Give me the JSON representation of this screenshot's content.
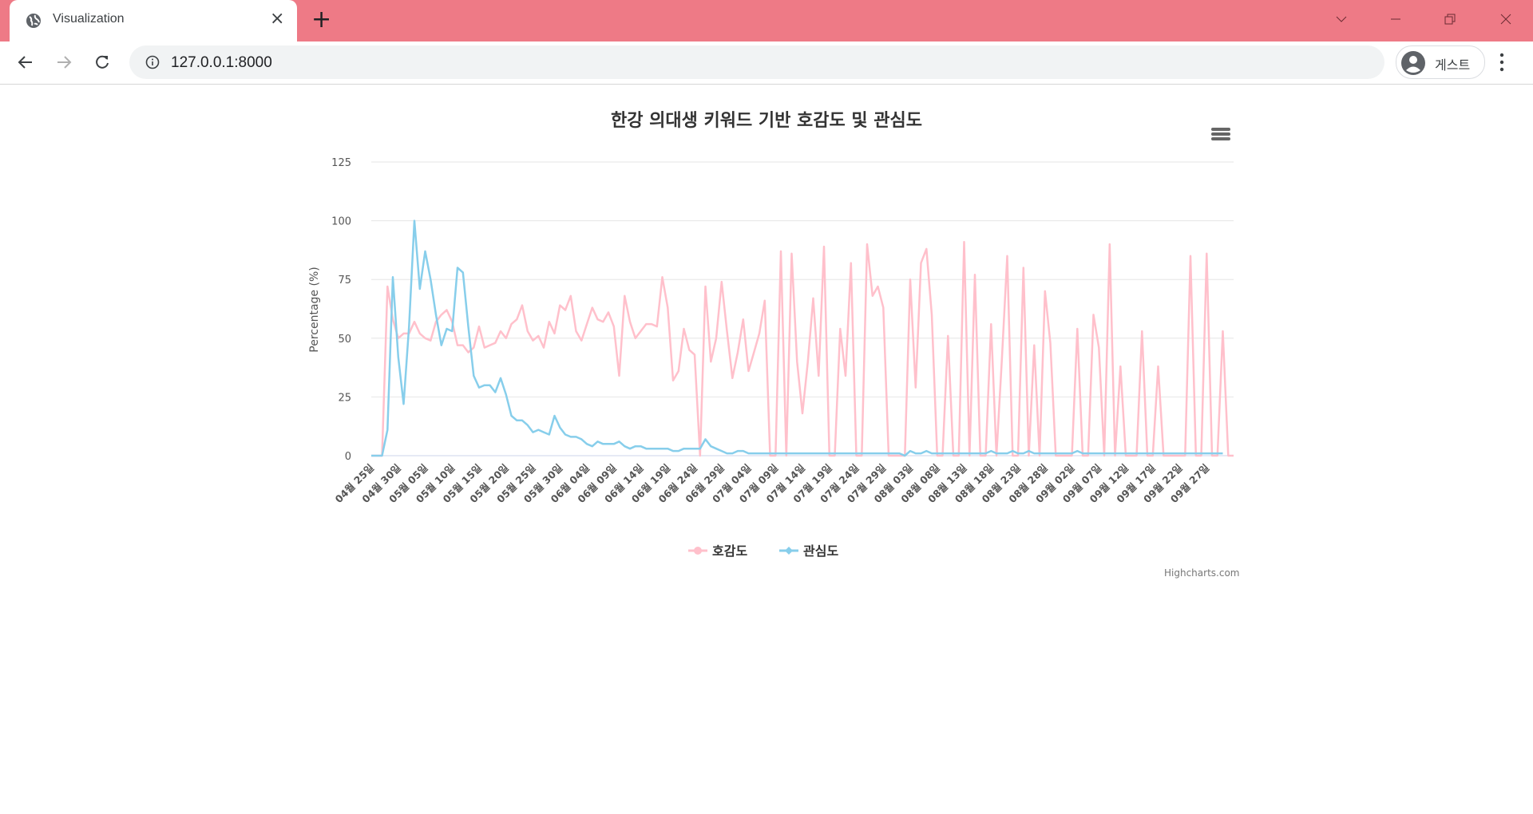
{
  "browser": {
    "tab": {
      "title": "Visualization",
      "icon": "globe-icon",
      "close": "×"
    },
    "new_tab": "+",
    "window_controls": [
      "chevron-down-icon",
      "minimize-icon",
      "restore-icon",
      "close-icon"
    ],
    "url": "127.0.0.1:8000",
    "profile_label": "게스트"
  },
  "chart_menu_icon": "hamburger-menu-icon",
  "credit": "Highcharts.com",
  "chart_data": {
    "type": "line",
    "title": "한강 의대생 키워드 기반 호감도 및 관심도",
    "xlabel": "",
    "ylabel": "Percentage (%)",
    "ylim": [
      0,
      125
    ],
    "yticks": [
      0,
      25,
      50,
      75,
      100,
      125
    ],
    "grid": true,
    "legend_position": "bottom-center",
    "start_date": "04-25",
    "x_tick_interval_days": 5,
    "x_tick_labels": [
      "04월 25일",
      "04월 30일",
      "05월 05일",
      "05월 10일",
      "05월 15일",
      "05월 20일",
      "05월 25일",
      "05월 30일",
      "06월 04일",
      "06월 09일",
      "06월 14일",
      "06월 19일",
      "06월 24일",
      "06월 29일",
      "07월 04일",
      "07월 09일",
      "07월 14일",
      "07월 19일",
      "07월 24일",
      "07월 29일",
      "08월 03일",
      "08월 08일",
      "08월 13일",
      "08월 18일",
      "08월 23일",
      "08월 28일",
      "09월 02일",
      "09월 07일",
      "09월 12일",
      "09월 17일",
      "09월 22일",
      "09월 27일"
    ],
    "series": [
      {
        "name": "호감도",
        "color": "#ffc0cb",
        "marker": "circle",
        "values": [
          0,
          0,
          0,
          72,
          58,
          50,
          52,
          52,
          57,
          52,
          50,
          49,
          57,
          60,
          62,
          57,
          47,
          47,
          44,
          46,
          55,
          46,
          47,
          48,
          53,
          50,
          56,
          58,
          64,
          53,
          49,
          51,
          46,
          57,
          52,
          64,
          62,
          68,
          53,
          49,
          56,
          63,
          58,
          57,
          61,
          55,
          34,
          68,
          57,
          50,
          53,
          56,
          56,
          55,
          76,
          63,
          32,
          36,
          54,
          45,
          43,
          0,
          72,
          40,
          50,
          74,
          53,
          33,
          44,
          58,
          36,
          44,
          52,
          66,
          0,
          0,
          87,
          0,
          86,
          40,
          18,
          40,
          67,
          34,
          89,
          0,
          0,
          54,
          34,
          82,
          0,
          0,
          90,
          68,
          72,
          63,
          0,
          0,
          0,
          0,
          75,
          29,
          82,
          88,
          60,
          0,
          0,
          51,
          0,
          0,
          91,
          0,
          77,
          0,
          0,
          56,
          0,
          41,
          85,
          0,
          0,
          80,
          0,
          47,
          0,
          70,
          48,
          0,
          0,
          0,
          0,
          54,
          0,
          0,
          60,
          46,
          0,
          90,
          0,
          38,
          0,
          0,
          0,
          53,
          0,
          0,
          38,
          0,
          0,
          0,
          0,
          0,
          85,
          0,
          0,
          86,
          0,
          0,
          53,
          0,
          0
        ]
      },
      {
        "name": "관심도",
        "color": "#87ceeb",
        "marker": "diamond",
        "values": [
          0,
          0,
          0,
          11,
          76,
          42,
          22,
          55,
          100,
          71,
          87,
          75,
          60,
          47,
          54,
          53,
          80,
          78,
          55,
          34,
          29,
          30,
          30,
          27,
          33,
          26,
          17,
          15,
          15,
          13,
          10,
          11,
          10,
          9,
          17,
          12,
          9,
          8,
          8,
          7,
          5,
          4,
          6,
          5,
          5,
          5,
          6,
          4,
          3,
          4,
          4,
          3,
          3,
          3,
          3,
          3,
          2,
          2,
          3,
          3,
          3,
          3,
          7,
          4,
          3,
          2,
          1,
          1,
          2,
          2,
          1,
          1,
          1,
          1,
          1,
          1,
          1,
          1,
          1,
          1,
          1,
          1,
          1,
          1,
          1,
          1,
          1,
          1,
          1,
          1,
          1,
          1,
          1,
          1,
          1,
          1,
          1,
          1,
          1,
          0,
          2,
          1,
          1,
          2,
          1,
          1,
          1,
          1,
          1,
          1,
          1,
          1,
          1,
          1,
          1,
          2,
          1,
          1,
          1,
          2,
          1,
          1,
          2,
          1,
          1,
          1,
          1,
          1,
          1,
          1,
          1,
          2,
          1,
          1,
          1,
          1,
          1,
          1,
          1,
          1,
          1,
          1,
          1,
          1,
          1,
          1,
          1,
          1,
          1,
          1,
          1,
          1,
          1,
          1,
          1,
          1,
          1,
          1,
          1
        ]
      }
    ]
  }
}
